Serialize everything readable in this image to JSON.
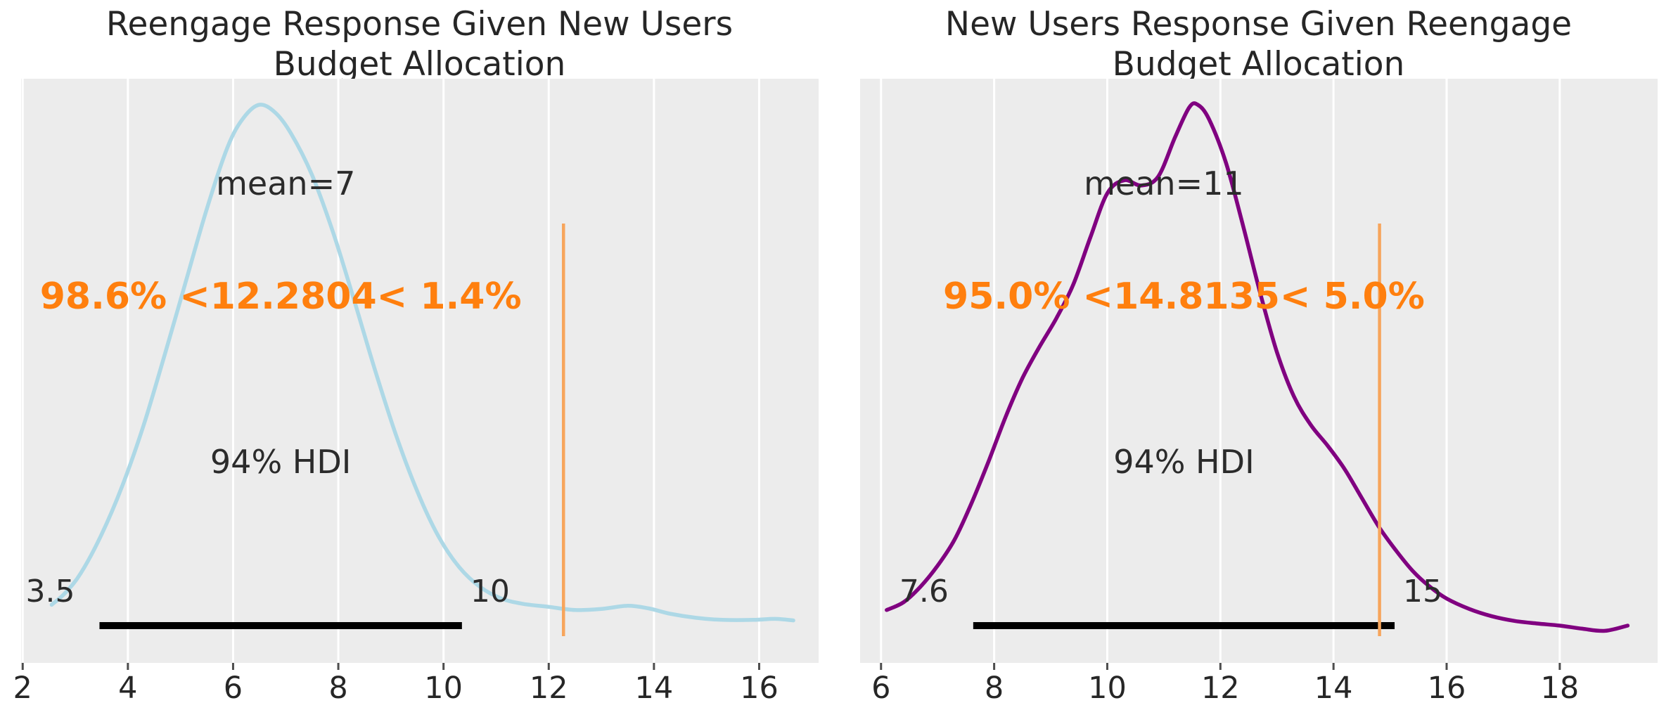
{
  "figure": {
    "background": "#ffffff",
    "panel_bg": "#ececec",
    "grid_color": "#ffffff",
    "tick_color": "#4d4d4d",
    "axis_text_color": "#262626",
    "annotation_color": "#2b2b2b",
    "ref_text_color": "#ff7f0e",
    "ref_line_color": "#f7a55c",
    "hdi_bar_color": "#000000"
  },
  "chart_data": [
    {
      "type": "line",
      "subtype": "kde-posterior",
      "title": "Reengage Response Given New Users Budget Allocation",
      "curve_color": "#add8e6",
      "mean": 7,
      "mean_label": "mean=7",
      "hdi_label": "94% HDI",
      "hdi_interval": [
        3.46,
        10.35
      ],
      "hdi_low_label": "3.5",
      "hdi_high_label": "10",
      "ref_text": "98.6% <12.2804< 1.4%",
      "ref_val": 12.2804,
      "x_ticks": [
        2,
        4,
        6,
        8,
        10,
        12,
        14,
        16
      ],
      "x_range": [
        1.97,
        17.13
      ],
      "grid": true,
      "legend": "none",
      "points": [
        [
          2.55,
          0.04
        ],
        [
          2.8,
          0.062
        ],
        [
          3.1,
          0.1
        ],
        [
          3.5,
          0.175
        ],
        [
          3.9,
          0.27
        ],
        [
          4.3,
          0.385
        ],
        [
          4.7,
          0.52
        ],
        [
          5.1,
          0.66
        ],
        [
          5.5,
          0.8
        ],
        [
          5.9,
          0.92
        ],
        [
          6.2,
          0.975
        ],
        [
          6.5,
          1.0
        ],
        [
          6.8,
          0.985
        ],
        [
          7.1,
          0.945
        ],
        [
          7.5,
          0.865
        ],
        [
          7.9,
          0.755
        ],
        [
          8.3,
          0.625
        ],
        [
          8.7,
          0.49
        ],
        [
          9.1,
          0.365
        ],
        [
          9.5,
          0.258
        ],
        [
          9.9,
          0.172
        ],
        [
          10.3,
          0.112
        ],
        [
          10.7,
          0.074
        ],
        [
          11.1,
          0.052
        ],
        [
          11.5,
          0.042
        ],
        [
          12.0,
          0.036
        ],
        [
          12.5,
          0.03
        ],
        [
          13.0,
          0.032
        ],
        [
          13.5,
          0.038
        ],
        [
          13.9,
          0.033
        ],
        [
          14.3,
          0.023
        ],
        [
          14.8,
          0.015
        ],
        [
          15.3,
          0.011
        ],
        [
          15.9,
          0.011
        ],
        [
          16.3,
          0.013
        ],
        [
          16.65,
          0.01
        ]
      ]
    },
    {
      "type": "line",
      "subtype": "kde-posterior",
      "title": "New Users Response Given Reengage Budget Allocation",
      "curve_color": "#800080",
      "mean": 11,
      "mean_label": "mean=11",
      "hdi_label": "94% HDI",
      "hdi_interval": [
        7.63,
        15.08
      ],
      "hdi_low_label": "7.6",
      "hdi_high_label": "15",
      "ref_text": "95.0% <14.8135< 5.0%",
      "ref_val": 14.8135,
      "x_ticks": [
        6,
        8,
        10,
        12,
        14,
        16,
        18
      ],
      "x_range": [
        5.63,
        19.73
      ],
      "grid": true,
      "legend": "none",
      "points": [
        [
          6.1,
          0.03
        ],
        [
          6.4,
          0.045
        ],
        [
          6.7,
          0.075
        ],
        [
          7.0,
          0.115
        ],
        [
          7.3,
          0.165
        ],
        [
          7.6,
          0.235
        ],
        [
          7.9,
          0.315
        ],
        [
          8.2,
          0.4
        ],
        [
          8.5,
          0.475
        ],
        [
          8.8,
          0.535
        ],
        [
          9.1,
          0.59
        ],
        [
          9.4,
          0.655
        ],
        [
          9.7,
          0.745
        ],
        [
          10.0,
          0.83
        ],
        [
          10.3,
          0.855
        ],
        [
          10.6,
          0.845
        ],
        [
          10.9,
          0.862
        ],
        [
          11.2,
          0.938
        ],
        [
          11.45,
          0.995
        ],
        [
          11.6,
          1.0
        ],
        [
          11.8,
          0.972
        ],
        [
          12.1,
          0.888
        ],
        [
          12.4,
          0.768
        ],
        [
          12.7,
          0.64
        ],
        [
          13.0,
          0.525
        ],
        [
          13.3,
          0.44
        ],
        [
          13.6,
          0.385
        ],
        [
          13.9,
          0.345
        ],
        [
          14.2,
          0.3
        ],
        [
          14.5,
          0.245
        ],
        [
          14.8,
          0.19
        ],
        [
          15.1,
          0.145
        ],
        [
          15.4,
          0.105
        ],
        [
          15.7,
          0.075
        ],
        [
          16.0,
          0.052
        ],
        [
          16.4,
          0.032
        ],
        [
          16.8,
          0.018
        ],
        [
          17.2,
          0.009
        ],
        [
          17.6,
          0.004
        ],
        [
          18.0,
          0.0
        ],
        [
          18.4,
          -0.006
        ],
        [
          18.8,
          -0.01
        ],
        [
          19.2,
          0.0
        ]
      ]
    }
  ]
}
